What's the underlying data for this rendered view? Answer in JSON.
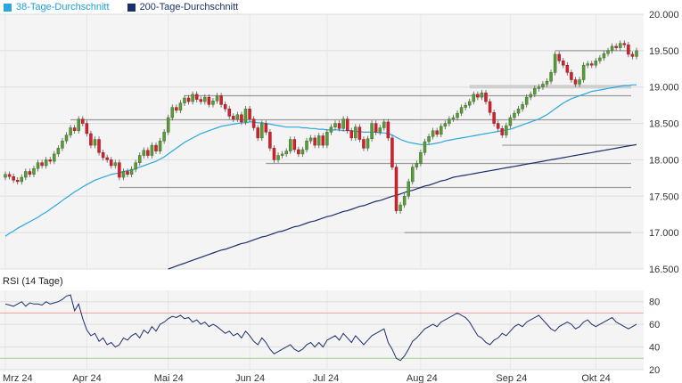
{
  "legend": {
    "items": [
      {
        "label": "38-Tage-Durchschnitt",
        "color": "#29a8e0"
      },
      {
        "label": "200-Tage-Durchschnitt",
        "color": "#1d2f6b"
      }
    ]
  },
  "rsi": {
    "title": "RSI (14 Tage)"
  },
  "chart_data": {
    "type": "candlestick",
    "title": "",
    "price_axis": {
      "ylim": [
        16500,
        20000
      ],
      "ticks": [
        16500,
        17000,
        17500,
        18000,
        18500,
        19000,
        19500,
        20000
      ],
      "tick_labels": [
        "16.500",
        "17.000",
        "17.500",
        "18.000",
        "18.500",
        "19.000",
        "19.500",
        "20.000"
      ],
      "position": "right"
    },
    "x_axis": {
      "labels": [
        "Mrz 24",
        "Apr 24",
        "Mai 24",
        "Jun 24",
        "Jul 24",
        "Aug 24",
        "Sep 24",
        "Okt 24"
      ],
      "label_day_index": [
        0,
        20,
        40,
        60,
        79,
        102,
        124,
        145
      ],
      "total_days": 156
    },
    "candles_close": [
      17800,
      17770,
      17720,
      17700,
      17760,
      17840,
      17800,
      17880,
      17960,
      17920,
      18000,
      17980,
      18080,
      18160,
      18260,
      18340,
      18440,
      18400,
      18560,
      18500,
      18360,
      18200,
      18280,
      18100,
      18030,
      18000,
      17920,
      17960,
      17760,
      17840,
      17800,
      17870,
      17960,
      18060,
      18130,
      18060,
      18200,
      18120,
      18260,
      18380,
      18580,
      18720,
      18680,
      18780,
      18850,
      18800,
      18900,
      18830,
      18800,
      18860,
      18760,
      18810,
      18880,
      18760,
      18700,
      18600,
      18560,
      18620,
      18520,
      18700,
      18560,
      18440,
      18300,
      18500,
      18380,
      18160,
      18000,
      18060,
      18080,
      18120,
      18280,
      18140,
      18080,
      18140,
      18260,
      18300,
      18200,
      18330,
      18200,
      18380,
      18450,
      18500,
      18430,
      18560,
      18400,
      18300,
      18450,
      18280,
      18160,
      18290,
      18500,
      18380,
      18440,
      18520,
      18300,
      17900,
      17300,
      17380,
      17500,
      17700,
      17900,
      17950,
      18100,
      18250,
      18320,
      18400,
      18350,
      18460,
      18500,
      18560,
      18580,
      18640,
      18720,
      18750,
      18800,
      18900,
      18860,
      18920,
      18800,
      18650,
      18500,
      18430,
      18340,
      18470,
      18580,
      18640,
      18700,
      18760,
      18860,
      18900,
      18980,
      19000,
      19040,
      19080,
      19200,
      19450,
      19360,
      19300,
      19200,
      19100,
      19040,
      19100,
      19300,
      19320,
      19300,
      19360,
      19400,
      19460,
      19500,
      19560,
      19540,
      19600,
      19580,
      19450,
      19420,
      19500
    ],
    "candles_open": [
      17760,
      17800,
      17770,
      17720,
      17700,
      17760,
      17840,
      17800,
      17880,
      17960,
      17920,
      18000,
      17980,
      18080,
      18160,
      18260,
      18340,
      18440,
      18400,
      18560,
      18500,
      18360,
      18200,
      18280,
      18100,
      18030,
      18000,
      17920,
      17960,
      17760,
      17840,
      17800,
      17870,
      17960,
      18060,
      18130,
      18060,
      18200,
      18120,
      18260,
      18380,
      18580,
      18720,
      18680,
      18780,
      18850,
      18800,
      18900,
      18830,
      18800,
      18860,
      18760,
      18810,
      18880,
      18760,
      18700,
      18600,
      18560,
      18620,
      18520,
      18700,
      18560,
      18440,
      18300,
      18500,
      18380,
      18160,
      18000,
      18060,
      18080,
      18120,
      18280,
      18140,
      18080,
      18140,
      18260,
      18300,
      18200,
      18330,
      18200,
      18380,
      18450,
      18500,
      18430,
      18560,
      18400,
      18300,
      18450,
      18280,
      18160,
      18290,
      18500,
      18380,
      18440,
      18520,
      18300,
      17900,
      17300,
      17380,
      17500,
      17700,
      17900,
      17950,
      18100,
      18250,
      18320,
      18400,
      18350,
      18460,
      18500,
      18560,
      18580,
      18640,
      18720,
      18750,
      18800,
      18900,
      18860,
      18920,
      18800,
      18650,
      18500,
      18430,
      18340,
      18470,
      18580,
      18640,
      18700,
      18760,
      18860,
      18900,
      18980,
      19000,
      19040,
      19080,
      19200,
      19450,
      19360,
      19300,
      19200,
      19100,
      19040,
      19100,
      19300,
      19320,
      19300,
      19360,
      19400,
      19460,
      19500,
      19560,
      19540,
      19600,
      19580,
      19450,
      19420
    ],
    "sma38": [
      16950,
      16990,
      17020,
      17060,
      17090,
      17120,
      17150,
      17180,
      17210,
      17250,
      17280,
      17320,
      17360,
      17400,
      17440,
      17480,
      17520,
      17560,
      17590,
      17630,
      17660,
      17690,
      17720,
      17740,
      17760,
      17780,
      17800,
      17810,
      17820,
      17840,
      17850,
      17860,
      17880,
      17900,
      17920,
      17940,
      17960,
      17980,
      18010,
      18040,
      18080,
      18120,
      18160,
      18200,
      18240,
      18270,
      18300,
      18330,
      18360,
      18380,
      18400,
      18420,
      18440,
      18460,
      18470,
      18480,
      18490,
      18500,
      18510,
      18510,
      18520,
      18520,
      18510,
      18510,
      18500,
      18490,
      18480,
      18470,
      18460,
      18450,
      18450,
      18450,
      18450,
      18440,
      18440,
      18430,
      18430,
      18420,
      18420,
      18410,
      18410,
      18410,
      18410,
      18400,
      18400,
      18400,
      18390,
      18390,
      18380,
      18380,
      18380,
      18380,
      18370,
      18370,
      18360,
      18340,
      18310,
      18280,
      18260,
      18240,
      18230,
      18220,
      18210,
      18210,
      18210,
      18220,
      18230,
      18240,
      18260,
      18270,
      18280,
      18290,
      18300,
      18310,
      18320,
      18330,
      18340,
      18350,
      18360,
      18370,
      18380,
      18390,
      18400,
      18410,
      18420,
      18440,
      18460,
      18480,
      18500,
      18520,
      18540,
      18560,
      18590,
      18620,
      18660,
      18700,
      18740,
      18780,
      18810,
      18840,
      18860,
      18880,
      18900,
      18920,
      18940,
      18950,
      18960,
      18970,
      18980,
      18990,
      19000,
      19010,
      19020,
      19020,
      19030,
      19030
    ],
    "sma200": [
      null,
      null,
      null,
      null,
      null,
      null,
      null,
      null,
      null,
      null,
      null,
      null,
      null,
      null,
      null,
      null,
      null,
      null,
      null,
      null,
      null,
      null,
      null,
      null,
      null,
      null,
      null,
      null,
      null,
      null,
      null,
      null,
      null,
      null,
      null,
      null,
      null,
      null,
      null,
      null,
      16500,
      16520,
      16540,
      16560,
      16580,
      16600,
      16620,
      16640,
      16660,
      16680,
      16700,
      16720,
      16740,
      16760,
      16770,
      16790,
      16810,
      16830,
      16850,
      16860,
      16880,
      16900,
      16920,
      16940,
      16950,
      16970,
      16990,
      17010,
      17020,
      17040,
      17060,
      17080,
      17090,
      17110,
      17130,
      17150,
      17160,
      17180,
      17200,
      17220,
      17230,
      17250,
      17270,
      17290,
      17300,
      17320,
      17340,
      17360,
      17370,
      17390,
      17410,
      17430,
      17440,
      17460,
      17480,
      17500,
      17510,
      17530,
      17550,
      17570,
      17580,
      17600,
      17620,
      17640,
      17650,
      17670,
      17690,
      17710,
      17720,
      17740,
      17760,
      17770,
      17780,
      17790,
      17800,
      17810,
      17820,
      17830,
      17840,
      17850,
      17860,
      17870,
      17880,
      17890,
      17900,
      17910,
      17920,
      17930,
      17940,
      17950,
      17960,
      17970,
      17980,
      17990,
      18000,
      18010,
      18020,
      18030,
      18040,
      18050,
      18060,
      18070,
      18080,
      18090,
      18100,
      18110,
      18120,
      18130,
      18140,
      18150,
      18160,
      18170,
      18180,
      18190,
      18200,
      18210
    ],
    "support_lines": [
      {
        "value": 18550,
        "from_day": 16,
        "to_day": 156
      },
      {
        "value": 18880,
        "from_day": 44,
        "to_day": 156
      },
      {
        "value": 17950,
        "from_day": 64,
        "to_day": 156
      },
      {
        "value": 17620,
        "from_day": 28,
        "to_day": 156
      },
      {
        "value": 17000,
        "from_day": 98,
        "to_day": 156
      },
      {
        "value": 18200,
        "from_day": 122,
        "to_day": 156
      },
      {
        "value": 19500,
        "from_day": 135,
        "to_day": 156
      }
    ],
    "rsi_axis": {
      "ylim": [
        20,
        90
      ],
      "ticks": [
        20,
        40,
        60,
        80
      ],
      "tick_labels": [
        "20",
        "40",
        "60",
        "80"
      ],
      "overbought": 70,
      "oversold": 30
    },
    "rsi_values": [
      78,
      77,
      76,
      78,
      80,
      76,
      79,
      78,
      78,
      77,
      80,
      78,
      79,
      80,
      82,
      85,
      86,
      72,
      78,
      65,
      55,
      50,
      52,
      45,
      48,
      42,
      44,
      40,
      42,
      48,
      46,
      50,
      52,
      48,
      55,
      52,
      58,
      54,
      60,
      62,
      65,
      67,
      66,
      68,
      65,
      66,
      62,
      64,
      60,
      62,
      58,
      60,
      58,
      55,
      52,
      54,
      50,
      52,
      48,
      54,
      50,
      45,
      42,
      48,
      44,
      38,
      34,
      36,
      38,
      40,
      42,
      38,
      36,
      38,
      42,
      44,
      40,
      44,
      40,
      46,
      48,
      50,
      46,
      52,
      48,
      44,
      50,
      46,
      42,
      46,
      50,
      52,
      54,
      56,
      44,
      38,
      30,
      28,
      32,
      38,
      45,
      48,
      52,
      56,
      58,
      60,
      58,
      62,
      64,
      66,
      68,
      70,
      68,
      66,
      62,
      56,
      50,
      48,
      44,
      42,
      46,
      48,
      52,
      50,
      54,
      58,
      60,
      58,
      62,
      64,
      66,
      68,
      64,
      60,
      56,
      54,
      58,
      60,
      62,
      60,
      56,
      58,
      62,
      64,
      60,
      58,
      60,
      62,
      64,
      66,
      62,
      60,
      58,
      56,
      58,
      60
    ]
  }
}
